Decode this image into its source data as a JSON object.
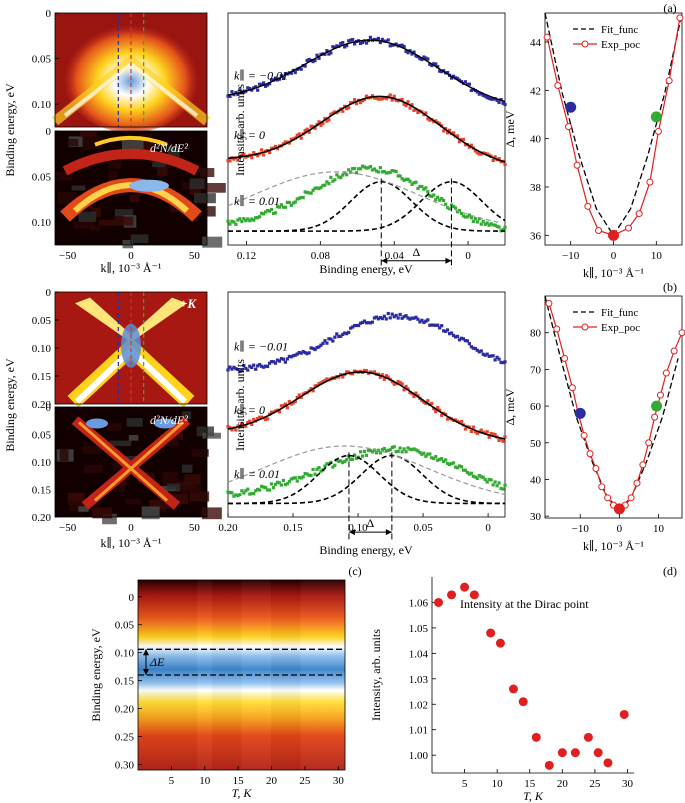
{
  "chart_data": [
    {
      "id": "a-arpes-map",
      "type": "heatmap",
      "panel": "a",
      "title": "",
      "ylabel": "Binding energy, eV",
      "y_ticks": [
        "0",
        "0.05",
        "0.10"
      ],
      "ylim": [
        0,
        0.125
      ],
      "xlim": [
        -60,
        60
      ],
      "cut_markers_k": [
        -10,
        0,
        10
      ],
      "cut_marker_colors": [
        "#2c2ca0",
        "#d0342c",
        "#33aa33"
      ]
    },
    {
      "id": "a-d2n-map",
      "type": "heatmap",
      "panel": "a",
      "annotation": "d²N/dE²",
      "xlabel": "k∥, 10⁻³ Å⁻¹",
      "ylabel": "Binding energy, eV",
      "x_ticks": [
        "−50",
        "0",
        "50"
      ],
      "y_ticks": [
        "0",
        "0.05",
        "0.10"
      ],
      "xlim": [
        -60,
        60
      ],
      "ylim": [
        0,
        0.125
      ]
    },
    {
      "id": "a-edc",
      "type": "line",
      "panel": "a",
      "xlabel": "Binding energy, eV",
      "ylabel": "Intensity, arb. units",
      "x_ticks": [
        "0.12",
        "0.08",
        "0.04",
        "0"
      ],
      "x_tick_values": [
        0.12,
        0.08,
        0.04,
        0
      ],
      "xlim": [
        0.13,
        -0.02
      ],
      "curve_labels": [
        "k∥ = −0.01",
        "k∥ = 0",
        "k∥ = 0.01"
      ],
      "delta_label": "Δ",
      "delta_from": 0.047,
      "delta_to": 0.009,
      "series": [
        {
          "name": "k∥ = −0.01",
          "color": "#2c2ca0",
          "center": 0.052,
          "width": 0.036,
          "amp": 1.0,
          "offset": 2.0
        },
        {
          "name": "k∥ = 0",
          "color": "#e8442c",
          "center": 0.047,
          "width": 0.032,
          "amp": 1.05,
          "offset": 1.1
        },
        {
          "name": "k∥ = 0.01",
          "color": "#33aa33",
          "center": 0.052,
          "width": 0.033,
          "amp": 0.95,
          "offset": 0.1
        }
      ]
    },
    {
      "id": "a-gap",
      "type": "line",
      "panel": "a",
      "panel_label": "(a)",
      "xlabel": "k∥, 10⁻³ Å⁻¹",
      "ylabel": "Δ, meV",
      "x_ticks": [
        "−10",
        "0",
        "10"
      ],
      "y_ticks": [
        "36",
        "38",
        "40",
        "42",
        "44"
      ],
      "xlim": [
        -16,
        16
      ],
      "ylim": [
        35.6,
        45.2
      ],
      "legend": [
        "Fit_func",
        "Exp_poc"
      ],
      "fit": {
        "x": [
          -16,
          -12,
          -8,
          -4,
          0,
          4,
          8,
          12,
          16
        ],
        "y": [
          45.2,
          41.9,
          39.3,
          37.1,
          36.0,
          37.1,
          39.3,
          41.9,
          45.2
        ]
      },
      "exp": {
        "x": [
          -15.5,
          -13,
          -10.5,
          -8.5,
          -6,
          -3.5,
          0,
          3.5,
          6,
          8.5,
          10.5,
          13,
          15.5
        ],
        "y": [
          44.2,
          42.2,
          40.5,
          38.9,
          37.2,
          36.2,
          36.0,
          36.3,
          36.9,
          38.2,
          40.3,
          42.4,
          45.0
        ]
      },
      "highlight": [
        {
          "x": -10,
          "y": 41.3,
          "color": "#2c2ca0"
        },
        {
          "x": 0,
          "y": 36.0,
          "color": "#e02020"
        },
        {
          "x": 10,
          "y": 40.9,
          "color": "#33aa33"
        }
      ]
    },
    {
      "id": "b-arpes-map",
      "type": "heatmap",
      "panel": "b",
      "annotation": "+K",
      "ylabel": "Binding energy, eV",
      "y_ticks": [
        "0",
        "0.05",
        "0.10",
        "0.15",
        "0.20"
      ],
      "ylim": [
        0,
        0.2
      ],
      "xlim": [
        -60,
        60
      ],
      "cut_markers_k": [
        -10,
        0,
        10
      ]
    },
    {
      "id": "b-d2n-map",
      "type": "heatmap",
      "panel": "b",
      "annotation": "d²N/dE²",
      "xlabel": "k∥, 10⁻³ Å⁻¹",
      "ylabel": "Binding energy, eV",
      "x_ticks": [
        "−50",
        "0",
        "50"
      ],
      "y_ticks": [
        "0",
        "0.05",
        "0.10",
        "0.15",
        "0.20"
      ],
      "xlim": [
        -60,
        60
      ],
      "ylim": [
        0,
        0.2
      ]
    },
    {
      "id": "b-edc",
      "type": "line",
      "panel": "b",
      "xlabel": "Binding energy, eV",
      "ylabel": "Intensity, arb. units",
      "x_ticks": [
        "0.20",
        "0.15",
        "0.10",
        "0.05",
        "0"
      ],
      "x_tick_values": [
        0.2,
        0.15,
        0.1,
        0.05,
        0
      ],
      "xlim": [
        0.2,
        -0.013
      ],
      "curve_labels": [
        "k∥ = −0.01",
        "k∥ = 0",
        "k∥ = 0.01"
      ],
      "delta_label": "Δ",
      "delta_from": 0.107,
      "delta_to": 0.074,
      "series": [
        {
          "name": "k∥ = −0.01",
          "color": "#2c2ca0",
          "center": 0.068,
          "width": 0.05,
          "amp": 0.95,
          "offset": 2.1
        },
        {
          "name": "k∥ = 0",
          "color": "#e8442c",
          "center": 0.097,
          "width": 0.047,
          "amp": 1.05,
          "offset": 1.1
        },
        {
          "name": "k∥ = 0.01",
          "color": "#33aa33",
          "center": 0.07,
          "width": 0.058,
          "amp": 0.85,
          "offset": 0.1
        }
      ]
    },
    {
      "id": "b-gap",
      "type": "line",
      "panel": "b",
      "panel_label": "(b)",
      "xlabel": "k∥, 10⁻³ Å⁻¹",
      "ylabel": "Δ, meV",
      "x_ticks": [
        "−10",
        "0",
        "10"
      ],
      "y_ticks": [
        "30",
        "40",
        "50",
        "60",
        "70",
        "80"
      ],
      "xlim": [
        -19,
        16
      ],
      "ylim": [
        29.5,
        90
      ],
      "legend": [
        "Fit_func",
        "Exp_poc"
      ],
      "fit": {
        "x": [
          -19,
          -15,
          -11,
          -7,
          -3,
          0,
          3,
          7,
          11,
          15
        ],
        "y": [
          90,
          73,
          57,
          45,
          35,
          32,
          35,
          45,
          57,
          73
        ]
      },
      "exp": {
        "x": [
          -18,
          -16,
          -14,
          -12,
          -10.5,
          -9,
          -7.5,
          -6,
          -4.5,
          -3,
          -1.5,
          0,
          1.5,
          3,
          4.5,
          6,
          7.5,
          9,
          10.5,
          12,
          14,
          16
        ],
        "y": [
          88,
          81,
          73,
          65,
          58,
          52,
          47,
          43,
          38,
          35,
          33,
          32,
          33,
          35,
          39,
          44,
          50,
          57,
          63,
          69,
          75,
          80
        ]
      },
      "highlight": [
        {
          "x": -10,
          "y": 58,
          "color": "#2c2ca0"
        },
        {
          "x": 0,
          "y": 32,
          "color": "#e02020"
        },
        {
          "x": 9.5,
          "y": 60,
          "color": "#33aa33"
        }
      ]
    },
    {
      "id": "c-temperature-map",
      "type": "heatmap",
      "panel": "c",
      "panel_label": "(c)",
      "xlabel": "T, K",
      "ylabel": "Binding energy, eV",
      "x_ticks": [
        "5",
        "10",
        "15",
        "20",
        "25",
        "30"
      ],
      "y_ticks": [
        "0",
        "0.05",
        "0.10",
        "0.15",
        "0.20",
        "0.25",
        "0.30"
      ],
      "xlim": [
        0,
        31
      ],
      "ylim": [
        -0.03,
        0.31
      ],
      "delta_label": "ΔE",
      "band_lower": 0.094,
      "band_upper": 0.14
    },
    {
      "id": "d-dirac-intensity",
      "type": "scatter",
      "panel": "d",
      "panel_label": "(d)",
      "title": "Intensity at the Dirac point",
      "xlabel": "T, K",
      "ylabel": "Intensity, arb. units",
      "x_ticks": [
        "5",
        "10",
        "15",
        "20",
        "25",
        "30"
      ],
      "y_ticks": [
        "1.00",
        "1.01",
        "1.02",
        "1.03",
        "1.04",
        "1.05",
        "1.06"
      ],
      "xlim": [
        0,
        31
      ],
      "ylim": [
        0.993,
        1.07
      ],
      "color": "#e02020",
      "x": [
        1,
        3,
        5,
        6.5,
        9,
        10.5,
        12.5,
        14,
        16,
        18,
        20,
        22,
        24,
        25.5,
        27,
        29.5
      ],
      "y": [
        1.06,
        1.063,
        1.066,
        1.063,
        1.048,
        1.044,
        1.026,
        1.021,
        1.007,
        0.996,
        1.001,
        1.001,
        1.007,
        1.001,
        0.997,
        1.016
      ]
    }
  ]
}
